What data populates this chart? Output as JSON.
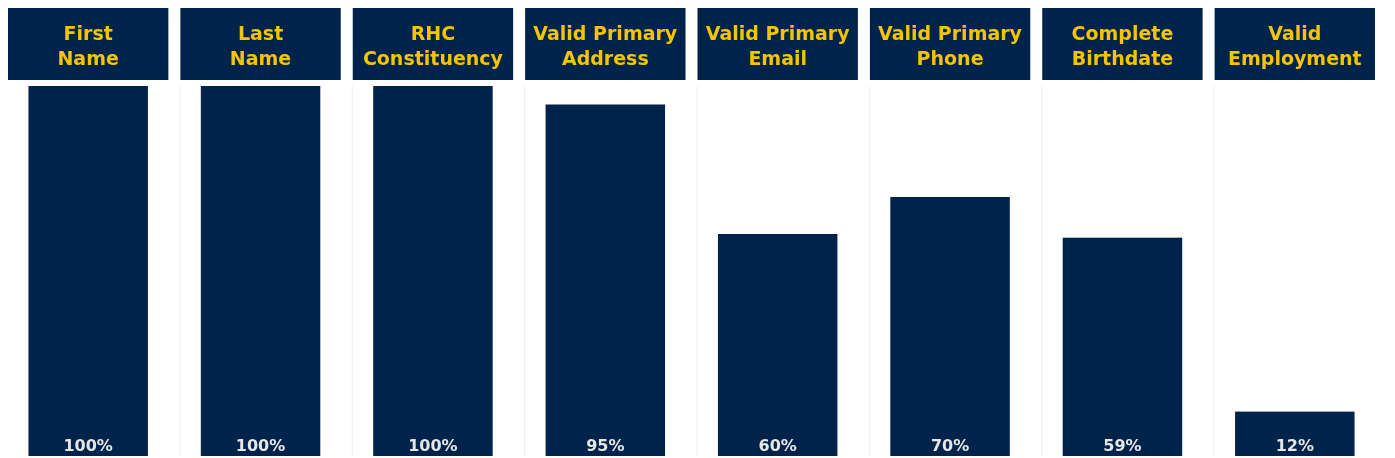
{
  "chart_data": {
    "type": "bar",
    "categories": [
      "First Name",
      "Last Name",
      "RHC Constituency",
      "Valid Primary Address",
      "Valid Primary Email",
      "Valid Primary Phone",
      "Complete Birthdate",
      "Valid Employment"
    ],
    "values": [
      100,
      100,
      100,
      95,
      60,
      70,
      59,
      12
    ],
    "value_labels": [
      "100%",
      "100%",
      "100%",
      "95%",
      "60%",
      "70%",
      "59%",
      "12%"
    ],
    "color": "#00234b",
    "ylim": [
      0,
      100
    ]
  }
}
